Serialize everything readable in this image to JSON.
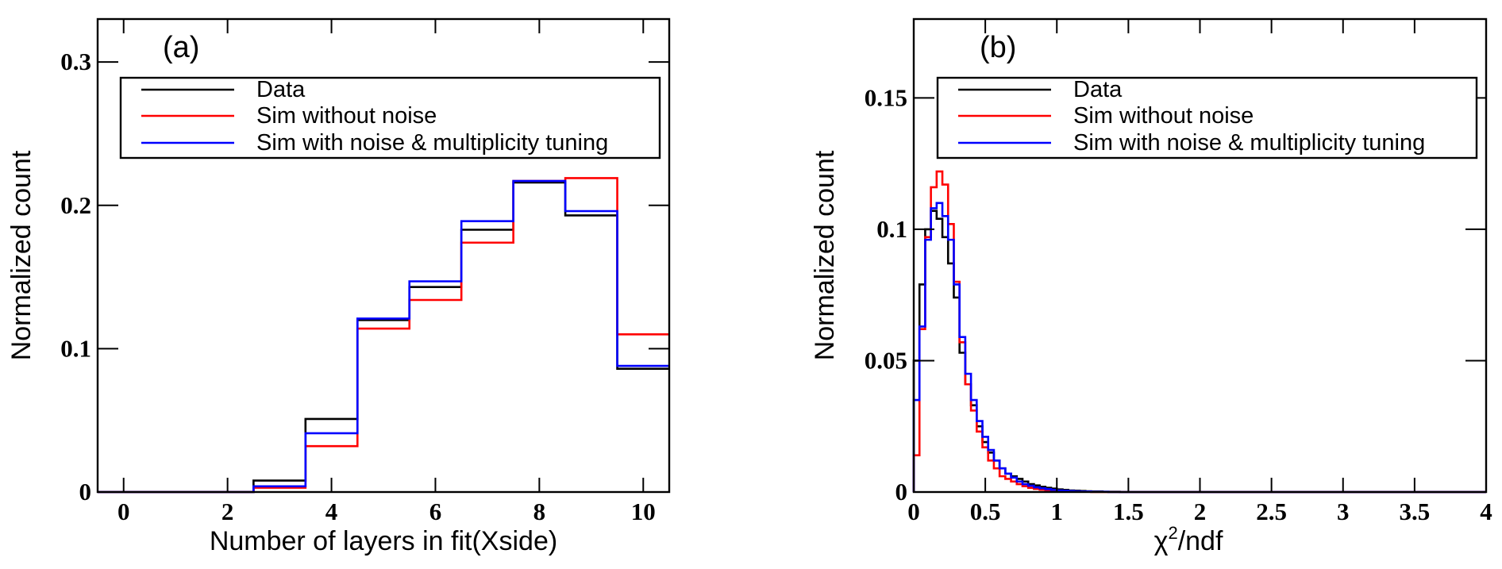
{
  "chart_data": [
    {
      "type": "histogram",
      "panel_label": "(a)",
      "xlabel": "Number of layers in fit(Xside)",
      "ylabel": "Normalized count",
      "xlim": [
        -0.5,
        10.5
      ],
      "ylim": [
        0,
        0.33
      ],
      "x_ticks": [
        0,
        2,
        4,
        6,
        8,
        10
      ],
      "x_tick_labels": [
        "0",
        "2",
        "4",
        "6",
        "8",
        "10"
      ],
      "y_ticks": [
        0,
        0.1,
        0.2,
        0.3
      ],
      "y_tick_labels": [
        "0",
        "0.1",
        "0.2",
        "0.3"
      ],
      "legend_position": "top",
      "bin_edges": [
        -0.5,
        0.5,
        1.5,
        2.5,
        3.5,
        4.5,
        5.5,
        6.5,
        7.5,
        8.5,
        9.5,
        10.5
      ],
      "series": [
        {
          "name": "Data",
          "color": "#000000",
          "values": [
            0,
            0,
            0,
            0.008,
            0.051,
            0.12,
            0.143,
            0.183,
            0.216,
            0.193,
            0.086
          ]
        },
        {
          "name": "Sim without noise",
          "color": "#ff0000",
          "values": [
            0,
            0,
            0,
            0.003,
            0.032,
            0.114,
            0.134,
            0.174,
            0.217,
            0.219,
            0.11
          ]
        },
        {
          "name": "Sim with noise & multiplicity tuning",
          "color": "#0000ff",
          "values": [
            0,
            0,
            0,
            0.004,
            0.041,
            0.121,
            0.147,
            0.189,
            0.217,
            0.196,
            0.088
          ]
        }
      ]
    },
    {
      "type": "histogram",
      "panel_label": "(b)",
      "xlabel": "χ²/ndf",
      "xlabel_base": "χ",
      "xlabel_sup": "2",
      "xlabel_tail": "/ndf",
      "ylabel": "Normalized count",
      "xlim": [
        0,
        4
      ],
      "ylim": [
        0,
        0.18
      ],
      "x_ticks": [
        0,
        0.5,
        1,
        1.5,
        2,
        2.5,
        3,
        3.5,
        4
      ],
      "x_tick_labels": [
        "0",
        "0.5",
        "1",
        "1.5",
        "2",
        "2.5",
        "3",
        "3.5",
        "4"
      ],
      "y_ticks": [
        0,
        0.05,
        0.1,
        0.15
      ],
      "y_tick_labels": [
        "0",
        "0.05",
        "0.1",
        "0.15"
      ],
      "legend_position": "top",
      "bin_width": 0.04,
      "x_start": 0,
      "series": [
        {
          "name": "Data",
          "color": "#000000",
          "values": [
            0.05,
            0.079,
            0.1,
            0.107,
            0.104,
            0.097,
            0.087,
            0.074,
            0.053,
            0.041,
            0.033,
            0.025,
            0.019,
            0.015,
            0.012,
            0.009,
            0.007,
            0.006,
            0.005,
            0.004,
            0.003,
            0.0025,
            0.002,
            0.0016,
            0.0013,
            0.001,
            0.0008,
            0.0006,
            0.0005,
            0.0004,
            0.0003,
            0.0002,
            0.0002,
            0.0001,
            0.0001,
            0.0001,
            0,
            0,
            0,
            0,
            0,
            0,
            0,
            0,
            0,
            0,
            0,
            0,
            0,
            0,
            0,
            0,
            0,
            0,
            0,
            0,
            0,
            0,
            0,
            0,
            0,
            0,
            0,
            0,
            0,
            0,
            0,
            0,
            0,
            0,
            0,
            0,
            0,
            0,
            0,
            0,
            0,
            0,
            0,
            0,
            0,
            0,
            0,
            0,
            0,
            0,
            0,
            0,
            0,
            0,
            0,
            0,
            0,
            0,
            0,
            0,
            0,
            0,
            0,
            0
          ]
        },
        {
          "name": "Sim without noise",
          "color": "#ff0000",
          "values": [
            0.014,
            0.062,
            0.097,
            0.116,
            0.122,
            0.117,
            0.102,
            0.08,
            0.057,
            0.041,
            0.031,
            0.023,
            0.017,
            0.012,
            0.009,
            0.006,
            0.005,
            0.004,
            0.003,
            0.0022,
            0.0016,
            0.0012,
            0.0009,
            0.0007,
            0.0005,
            0.0004,
            0.0003,
            0.0002,
            0.0002,
            0.0001,
            0.0001,
            0,
            0,
            0,
            0,
            0,
            0,
            0,
            0,
            0,
            0,
            0,
            0,
            0,
            0,
            0,
            0,
            0,
            0,
            0,
            0,
            0,
            0,
            0,
            0,
            0,
            0,
            0,
            0,
            0,
            0,
            0,
            0,
            0,
            0,
            0,
            0,
            0,
            0,
            0,
            0,
            0,
            0,
            0,
            0,
            0,
            0,
            0,
            0,
            0,
            0,
            0,
            0,
            0,
            0,
            0,
            0,
            0,
            0,
            0,
            0,
            0,
            0,
            0,
            0,
            0,
            0,
            0,
            0,
            0
          ]
        },
        {
          "name": "Sim with noise & multiplicity tuning",
          "color": "#0000ff",
          "values": [
            0.035,
            0.063,
            0.096,
            0.108,
            0.11,
            0.105,
            0.096,
            0.079,
            0.059,
            0.045,
            0.035,
            0.027,
            0.021,
            0.016,
            0.012,
            0.009,
            0.007,
            0.0055,
            0.004,
            0.003,
            0.0024,
            0.0018,
            0.0014,
            0.0011,
            0.0008,
            0.0006,
            0.0005,
            0.0004,
            0.0003,
            0.0002,
            0.0002,
            0.0001,
            0.0001,
            0.0001,
            0,
            0,
            0,
            0,
            0,
            0,
            0,
            0,
            0,
            0,
            0,
            0,
            0,
            0,
            0,
            0,
            0,
            0,
            0,
            0,
            0,
            0,
            0,
            0,
            0,
            0,
            0,
            0,
            0,
            0,
            0,
            0,
            0,
            0,
            0,
            0,
            0,
            0,
            0,
            0,
            0,
            0,
            0,
            0,
            0,
            0,
            0,
            0,
            0,
            0,
            0,
            0,
            0,
            0,
            0,
            0,
            0,
            0,
            0,
            0,
            0,
            0,
            0,
            0,
            0,
            0
          ]
        }
      ]
    }
  ]
}
